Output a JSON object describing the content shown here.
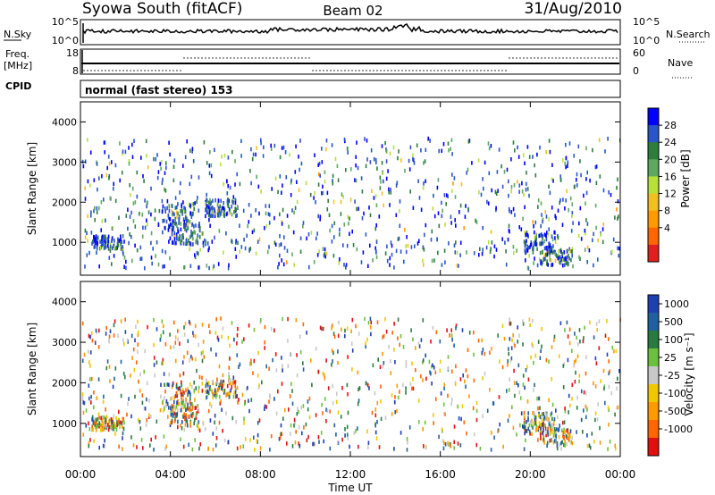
{
  "header": {
    "site": "Syowa South (fitACF)",
    "beam": "Beam 02",
    "date": "31/Aug/2010"
  },
  "left_labels": {
    "nsky": "N.Sky",
    "freq": "Freq.",
    "freq_unit": "[MHz]",
    "cpid": "CPID"
  },
  "right_labels": {
    "nsearch": "N.Search",
    "nave": "Nave"
  },
  "cpid_text": "normal (fast stereo) 153",
  "noise_axis": {
    "left_ticks": [
      "10^5",
      "10^0"
    ],
    "right_ticks": [
      "10^5",
      "10^0"
    ]
  },
  "freq_axis": {
    "left_ticks": [
      "18",
      "8"
    ],
    "right_ticks": [
      "60",
      "0"
    ]
  },
  "colors": {
    "power_scale": [
      "#0000ff",
      "#2a55c8",
      "#2e7d3c",
      "#5fa85f",
      "#b7e03a",
      "#f0c020",
      "#ff9900",
      "#ff6600",
      "#e02020"
    ],
    "velocity_scale": [
      "#2040b0",
      "#2060a0",
      "#2a7a40",
      "#6cc040",
      "#c8c8c8",
      "#f0c800",
      "#ff9900",
      "#ff6600",
      "#e01010"
    ]
  },
  "chart_data": [
    {
      "type": "heatmap",
      "name": "power",
      "xlabel": "",
      "ylabel": "Slant Range [km]",
      "x_ticks": [
        "00:00",
        "04:00",
        "08:00",
        "12:00",
        "16:00",
        "20:00",
        "00:00"
      ],
      "y_ticks": [
        1000,
        2000,
        3000,
        4000
      ],
      "ylim": [
        180,
        4500
      ],
      "colorbar_label": "Power [dB]",
      "colorbar_ticks": [
        "28",
        "24",
        "20",
        "16",
        "12",
        "8",
        "4"
      ],
      "grid": false
    },
    {
      "type": "heatmap",
      "name": "velocity",
      "xlabel": "Time UT",
      "ylabel": "Slant Range [km]",
      "x_ticks": [
        "00:00",
        "04:00",
        "08:00",
        "12:00",
        "16:00",
        "20:00",
        "00:00"
      ],
      "y_ticks": [
        1000,
        2000,
        3000,
        4000
      ],
      "ylim": [
        180,
        4500
      ],
      "colorbar_label": "Velocity [m s⁻¹]",
      "colorbar_ticks": [
        "1000",
        "500",
        "100",
        "25",
        "-25",
        "-100",
        "-500",
        "-1000"
      ],
      "grid": false
    }
  ]
}
